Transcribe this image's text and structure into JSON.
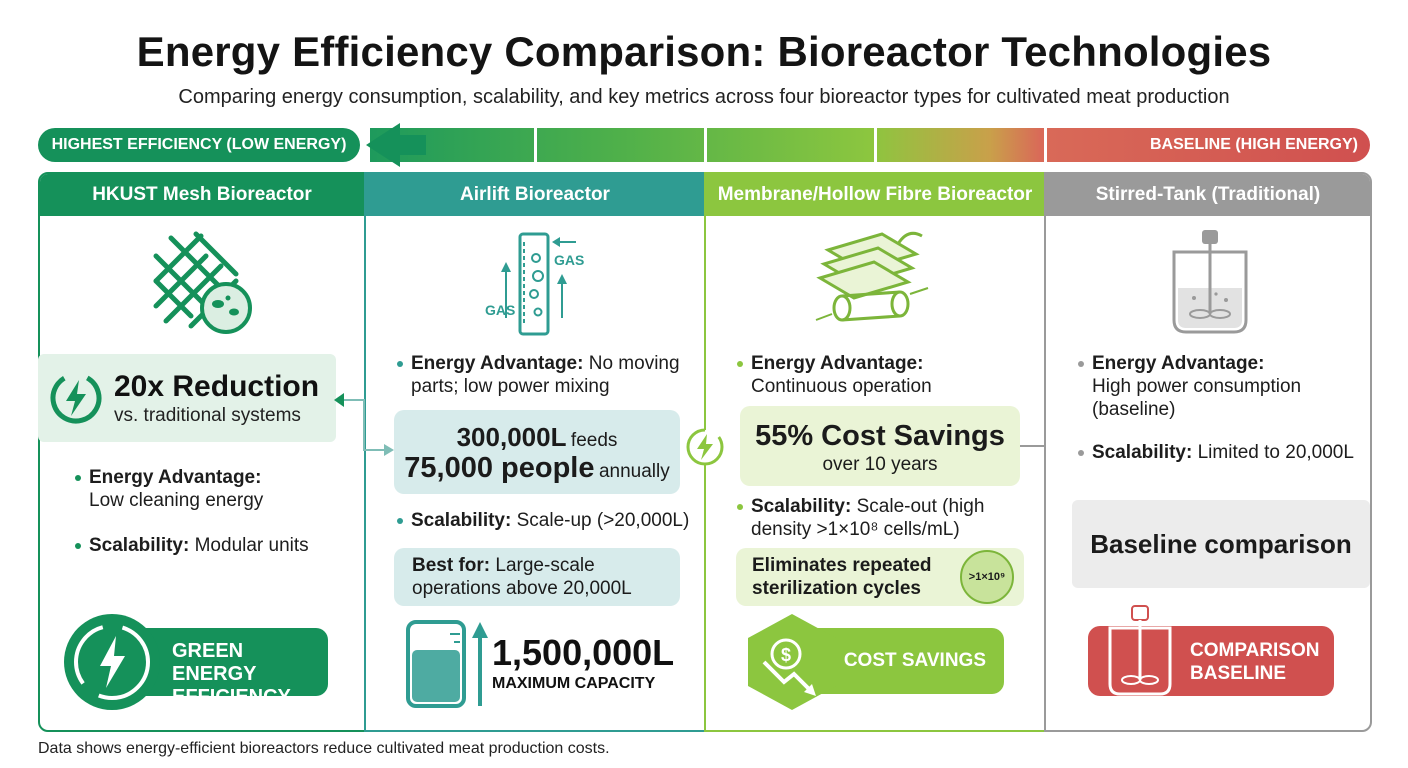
{
  "title": "Energy Efficiency Comparison: Bioreactor Technologies",
  "subtitle": "Comparing energy consumption, scalability, and key metrics across four bioreactor types for cultivated meat production",
  "scale": {
    "high_label": "HIGHEST EFFICIENCY (LOW ENERGY)",
    "low_label": "BASELINE (HIGH ENERGY)"
  },
  "colors": {
    "green": "#15915a",
    "teal": "#2f9c92",
    "lime": "#8cc63f",
    "gray": "#9a9a9a",
    "red": "#d0504f"
  },
  "columns": [
    {
      "name": "HKUST Mesh Bioreactor",
      "icon": "mesh-cell-icon",
      "highlight_value": "20x Reduction",
      "highlight_sub": "vs. traditional systems",
      "energy_label": "Energy Advantage:",
      "energy_text": "Low cleaning energy",
      "scal_label": "Scalability:",
      "scal_text": "Modular units",
      "badge_line1": "GREEN ENERGY",
      "badge_line2": "EFFICIENCY",
      "badge_icon": "leaf-bolt-icon"
    },
    {
      "name": "Airlift Bioreactor",
      "icon": "airlift-column-icon",
      "gas_left": "GAS",
      "gas_right": "GAS",
      "energy_label": "Energy Advantage:",
      "energy_text": "No moving parts; low power mixing",
      "stat_line1_big": "300,000L",
      "stat_line1_small": "feeds",
      "stat_line2_big": "75,000 people",
      "stat_line2_small": "annually",
      "scal_label": "Scalability:",
      "scal_text": "Scale-up (>20,000L)",
      "best_label": "Best for:",
      "best_text": "Large-scale operations above 20,000L",
      "capacity_value": "1,500,000L",
      "capacity_label": "MAXIMUM CAPACITY",
      "capacity_icon": "tank-gauge-icon"
    },
    {
      "name": "Membrane/Hollow Fibre Bioreactor",
      "icon": "membrane-fibre-icon",
      "energy_label": "Energy Advantage:",
      "energy_text": "Continuous operation",
      "savings_value": "55% Cost Savings",
      "savings_sub": "over 10 years",
      "scal_label": "Scalability:",
      "scal_text": "Scale-out (high density >1×10⁸ cells/mL)",
      "note_text": "Eliminates repeated sterilization cycles",
      "note_badge": ">1×10⁹",
      "badge_label": "COST SAVINGS",
      "badge_icon": "dollar-down-icon"
    },
    {
      "name": "Stirred-Tank (Traditional)",
      "icon": "stirred-tank-icon",
      "energy_label": "Energy Advantage:",
      "energy_text": "High power consumption (baseline)",
      "scal_label": "Scalability:",
      "scal_text": "Limited to 20,000L",
      "baseline_text": "Baseline comparison",
      "badge_line1": "COMPARISON",
      "badge_line2": "BASELINE",
      "badge_icon": "impeller-tank-icon"
    }
  ],
  "footnote": "Data shows energy-efficient bioreactors reduce cultivated meat production costs."
}
